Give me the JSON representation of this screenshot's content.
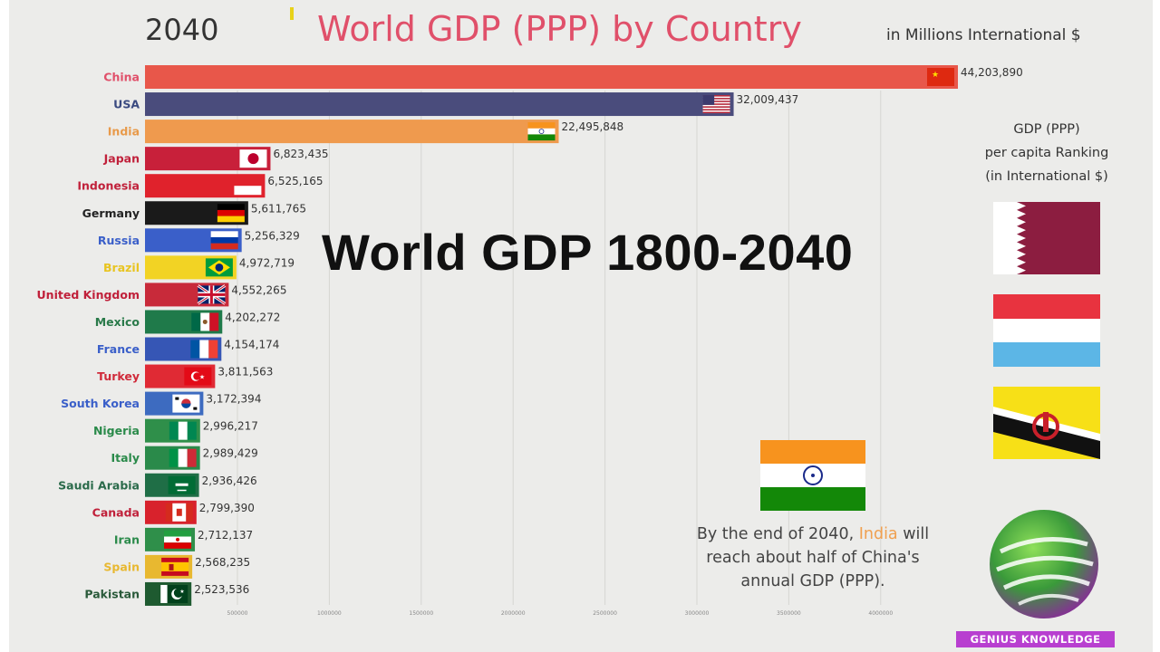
{
  "header": {
    "year": "2040",
    "title": "World GDP (PPP) by Country",
    "units": "in Millions International $"
  },
  "overlay_title": "World GDP 1800-2040",
  "per_capita": {
    "title_lines": [
      "GDP (PPP)",
      "per capita Ranking",
      "(in International $)"
    ],
    "flags": [
      "qatar-flag",
      "luxembourg-flag",
      "brunei-flag"
    ]
  },
  "note": {
    "part1": "By the end of 2040, ",
    "highlight": "India",
    "part2": " will reach about half of China's annual GDP (PPP)."
  },
  "logo": {
    "text": "GENIUS KNOWLEDGE"
  },
  "chart_data": {
    "type": "bar",
    "orientation": "horizontal",
    "title": "World GDP (PPP) by Country",
    "subtitle": "in Millions International $",
    "xlim": [
      0,
      44203890
    ],
    "x_ticks": [
      "500000",
      "1000000",
      "1500000",
      "2000000",
      "2500000",
      "3000000",
      "3500000",
      "4000000"
    ],
    "grid": true,
    "categories": [
      "China",
      "USA",
      "India",
      "Japan",
      "Indonesia",
      "Germany",
      "Russia",
      "Brazil",
      "United Kingdom",
      "Mexico",
      "France",
      "Turkey",
      "South Korea",
      "Nigeria",
      "Italy",
      "Saudi Arabia",
      "Canada",
      "Iran",
      "Spain",
      "Pakistan"
    ],
    "values": [
      44203890,
      32009437,
      22495848,
      6823435,
      6525165,
      5611765,
      5256329,
      4972719,
      4552265,
      4202272,
      4154174,
      3811563,
      3172394,
      2996217,
      2989429,
      2936426,
      2799390,
      2712137,
      2568235,
      2523536
    ],
    "value_labels": [
      "44,203,890",
      "32,009,437",
      "22,495,848",
      "6,823,435",
      "6,525,165",
      "5,611,765",
      "5,256,329",
      "4,972,719",
      "4,552,265",
      "4,202,272",
      "4,154,174",
      "3,811,563",
      "3,172,394",
      "2,996,217",
      "2,989,429",
      "2,936,426",
      "2,799,390",
      "2,712,137",
      "2,568,235",
      "2,523,536"
    ],
    "colors": [
      "#e8574a",
      "#4a4c7c",
      "#ef9a4e",
      "#c8203a",
      "#e0222c",
      "#1a1a1a",
      "#3a5fc9",
      "#f2d324",
      "#c82a3a",
      "#1f7a4a",
      "#3656b5",
      "#e02a34",
      "#3d6bc0",
      "#2f8f4a",
      "#2a8a4a",
      "#1f6e46",
      "#d8222c",
      "#2f8f4a",
      "#e8b830",
      "#1e5a30"
    ],
    "label_colors": [
      "#e0506a",
      "#3a4a80",
      "#e89a4a",
      "#c0203a",
      "#c0203a",
      "#222222",
      "#3a5fc9",
      "#e8c420",
      "#c0203a",
      "#2a7a4a",
      "#3a5fc9",
      "#d02a3a",
      "#3a5fc9",
      "#2a8a4a",
      "#2a8a4a",
      "#2a6a4a",
      "#c0203a",
      "#2a8a4a",
      "#e8b830",
      "#2a5a3a"
    ],
    "flags": [
      "china-flag",
      "usa-flag",
      "india-flag",
      "japan-flag",
      "indonesia-flag",
      "germany-flag",
      "russia-flag",
      "brazil-flag",
      "uk-flag",
      "mexico-flag",
      "france-flag",
      "turkey-flag",
      "south-korea-flag",
      "nigeria-flag",
      "italy-flag",
      "saudi-arabia-flag",
      "canada-flag",
      "iran-flag",
      "spain-flag",
      "pakistan-flag"
    ]
  }
}
